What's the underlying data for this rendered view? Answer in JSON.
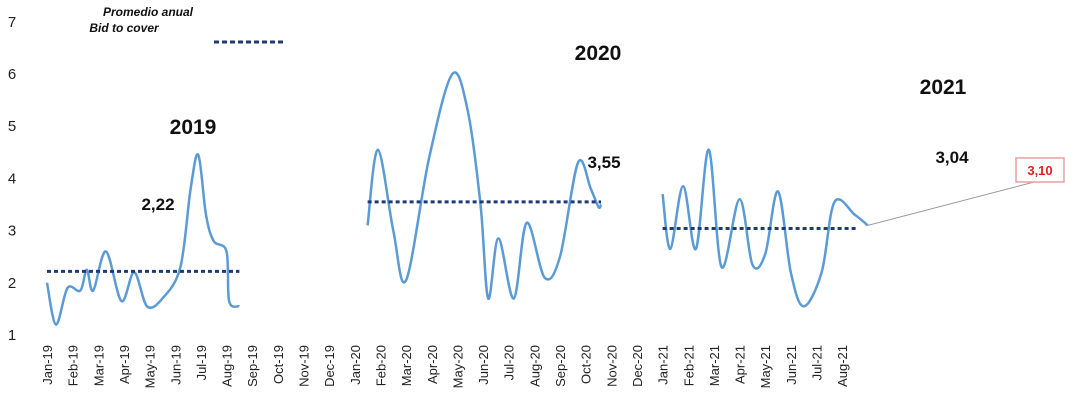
{
  "chart_data": {
    "type": "line",
    "categories": [
      "Jan-19",
      "Feb-19",
      "Mar-19",
      "Apr-19",
      "May-19",
      "Jun-19",
      "Jul-19",
      "Aug-19",
      "Sep-19",
      "Oct-19",
      "Nov-19",
      "Dec-19",
      "Jan-20",
      "Feb-20",
      "Mar-20",
      "Apr-20",
      "May-20",
      "Jun-20",
      "Jul-20",
      "Aug-20",
      "Sep-20",
      "Oct-20",
      "Nov-20",
      "Dec-20",
      "Jan-21",
      "Feb-21",
      "Mar-21",
      "Apr-21",
      "May-21",
      "Jun-21",
      "Jul-21",
      "Aug-21"
    ],
    "ylim": [
      1,
      7
    ],
    "yticks": [
      1,
      2,
      3,
      4,
      5,
      6,
      7
    ],
    "legend": {
      "line1": "Promedio anual",
      "line2": "Bid to cover",
      "placement": "top-left"
    },
    "series": [
      {
        "points": [
          [
            0,
            2.0
          ],
          [
            0.35,
            1.2
          ],
          [
            0.8,
            1.9
          ],
          [
            1.3,
            1.85
          ],
          [
            1.55,
            2.25
          ],
          [
            1.8,
            1.85
          ],
          [
            2.3,
            2.6
          ],
          [
            2.9,
            1.65
          ],
          [
            3.4,
            2.2
          ],
          [
            3.9,
            1.55
          ],
          [
            4.5,
            1.7
          ],
          [
            5.2,
            2.3
          ],
          [
            5.6,
            3.8
          ],
          [
            5.9,
            4.45
          ],
          [
            6.2,
            3.3
          ],
          [
            6.5,
            2.8
          ],
          [
            7.0,
            2.6
          ],
          [
            7.1,
            1.65
          ],
          [
            7.5,
            1.55
          ]
        ]
      },
      {
        "points": [
          [
            12.5,
            3.1
          ],
          [
            12.9,
            4.55
          ],
          [
            13.5,
            3.0
          ],
          [
            14.0,
            2.05
          ],
          [
            14.9,
            4.4
          ],
          [
            15.8,
            6.0
          ],
          [
            16.4,
            5.3
          ],
          [
            16.9,
            3.5
          ],
          [
            17.2,
            1.7
          ],
          [
            17.6,
            2.85
          ],
          [
            18.2,
            1.7
          ],
          [
            18.7,
            3.15
          ],
          [
            19.4,
            2.1
          ],
          [
            20.0,
            2.5
          ],
          [
            20.7,
            4.3
          ],
          [
            21.2,
            3.8
          ],
          [
            21.5,
            3.45
          ],
          [
            21.6,
            3.5
          ]
        ]
      },
      {
        "points": [
          [
            24.0,
            3.7
          ],
          [
            24.3,
            2.65
          ],
          [
            24.8,
            3.85
          ],
          [
            25.3,
            2.65
          ],
          [
            25.8,
            4.55
          ],
          [
            26.3,
            2.3
          ],
          [
            27.0,
            3.6
          ],
          [
            27.5,
            2.35
          ],
          [
            28.0,
            2.55
          ],
          [
            28.5,
            3.75
          ],
          [
            29.0,
            2.2
          ],
          [
            29.5,
            1.55
          ],
          [
            30.2,
            2.2
          ],
          [
            30.7,
            3.55
          ],
          [
            31.5,
            3.3
          ],
          [
            32.0,
            3.1
          ]
        ]
      }
    ],
    "annual_averages": [
      {
        "year": "2019",
        "value": 2.22,
        "label": "2,22",
        "from": 0,
        "to": 7.5
      },
      {
        "year": "2020",
        "value": 3.55,
        "label": "3,55",
        "from": 12.5,
        "to": 21.6
      },
      {
        "year": "2021",
        "value": 3.04,
        "label": "3,04",
        "from": 24.0,
        "to": 31.6
      }
    ],
    "callout": {
      "label": "3,10",
      "value": 3.1
    },
    "grid": false,
    "colors": {
      "series": "#5b9bd5",
      "average": "#1f3a7a",
      "callout_border": "#e8a0a0",
      "callout_text": "#e02020"
    }
  }
}
